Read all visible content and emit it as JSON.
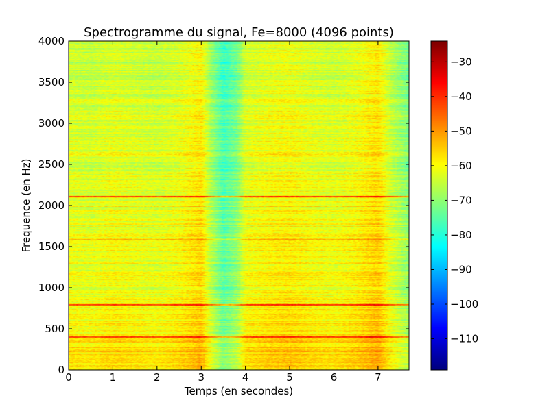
{
  "chart_data": {
    "type": "heatmap",
    "title": "Spectrogramme du signal, Fe=8000 (4096 points)",
    "xlabel": "Temps (en secondes)",
    "ylabel": "Frequence (en Hz)",
    "xlim": [
      0,
      7.7
    ],
    "ylim": [
      0,
      4000
    ],
    "x_ticks": [
      0,
      1,
      2,
      3,
      4,
      5,
      6,
      7
    ],
    "y_ticks": [
      0,
      500,
      1000,
      1500,
      2000,
      2500,
      3000,
      3500,
      4000
    ],
    "x_tick_labels": [
      "0",
      "1",
      "2",
      "3",
      "4",
      "5",
      "6",
      "7"
    ],
    "y_tick_labels": [
      "0",
      "500",
      "1000",
      "1500",
      "2000",
      "2500",
      "3000",
      "3500",
      "4000"
    ],
    "colormap": "jet",
    "colorbar": {
      "vmin": -119,
      "vmax": -24,
      "ticks": [
        -30,
        -40,
        -50,
        -60,
        -70,
        -80,
        -90,
        -100,
        -110
      ],
      "tick_labels": [
        "−30",
        "−40",
        "−50",
        "−60",
        "−70",
        "−80",
        "−90",
        "−100",
        "−110"
      ]
    },
    "time_profile": {
      "t": [
        0,
        0.5,
        1.0,
        1.5,
        2.0,
        2.5,
        3.0,
        3.2,
        3.5,
        3.8,
        4.0,
        4.5,
        5.0,
        5.5,
        6.0,
        6.5,
        7.0,
        7.3,
        7.7
      ],
      "level_db": [
        -62,
        -63,
        -61,
        -62,
        -63,
        -61,
        -57,
        -66,
        -76,
        -71,
        -62,
        -60,
        -59,
        -61,
        -62,
        -60,
        -56,
        -64,
        -71
      ]
    },
    "frequency_profile": {
      "f": [
        0,
        250,
        500,
        800,
        1000,
        1500,
        2000,
        2500,
        3000,
        3500,
        4000
      ],
      "level_db": [
        -58,
        -57,
        -59,
        -60,
        -61,
        -61,
        -62,
        -63,
        -63,
        -64,
        -65
      ]
    },
    "strong_lines_hz": [
      400,
      790,
      2110
    ],
    "grid": false
  }
}
